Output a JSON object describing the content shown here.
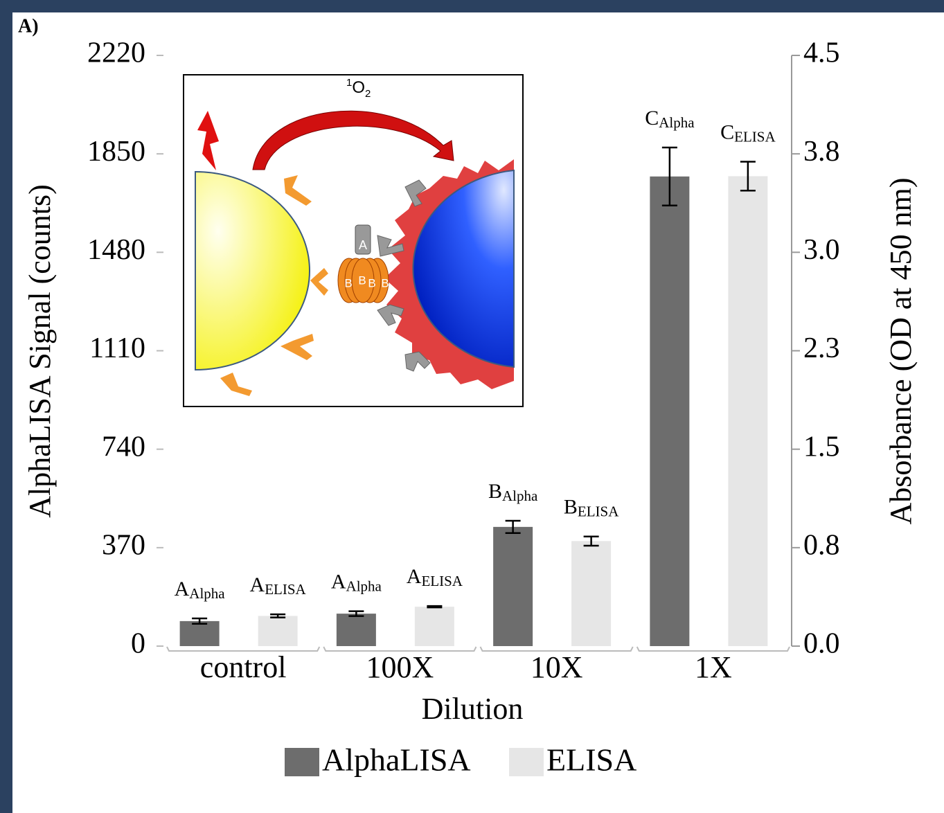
{
  "chart_data": {
    "type": "bar",
    "panel_label": "A)",
    "x_label": "Dilution",
    "y_label": "AlphaLISA Signal (counts)",
    "y2_label": "Absorbance (OD at 450 nm)",
    "categories": [
      "control",
      "100X",
      "10X",
      "1X"
    ],
    "ylim": [
      0,
      2220
    ],
    "yticks": [
      0,
      370,
      740,
      1110,
      1480,
      1850,
      2220
    ],
    "y2lim": [
      0,
      4.5
    ],
    "y2ticks": [
      {
        "value": 0,
        "label": "0.0"
      },
      {
        "value": 0.75,
        "label": "0.8"
      },
      1.5,
      {
        "value": 2.25,
        "label": "2.3"
      },
      {
        "value": 3,
        "label": "3.0"
      },
      {
        "value": 3.75,
        "label": "3.8"
      },
      4.5
    ],
    "series": [
      {
        "name": "AlphaLISA",
        "color": "#6d6d6d",
        "axis": "y",
        "values": [
          94,
          122,
          448,
          1765
        ],
        "errors": [
          10,
          9,
          23,
          109
        ],
        "annotations": [
          {
            "letter": "A",
            "subscript": "Alpha"
          },
          {
            "letter": "A",
            "subscript": "Alpha"
          },
          {
            "letter": "B",
            "subscript": "Alpha"
          },
          {
            "letter": "C",
            "subscript": "Alpha"
          }
        ]
      },
      {
        "name": "ELISA",
        "color": "#e6e6e6",
        "axis": "y2",
        "values": [
          0.23,
          0.3,
          0.8,
          3.58
        ],
        "errors": [
          0.012,
          0.005,
          0.035,
          0.11
        ],
        "annotations": [
          {
            "letter": "A",
            "subscript": "ELISA"
          },
          {
            "letter": "A",
            "subscript": "ELISA"
          },
          {
            "letter": "B",
            "subscript": "ELISA"
          },
          {
            "letter": "C",
            "subscript": "ELISA"
          }
        ]
      }
    ],
    "inset": {
      "oxygen": {
        "sup": "1",
        "main": "O",
        "sub": "2"
      },
      "antibody_a": "A",
      "antibody_b": [
        "B",
        "B",
        "B",
        "B"
      ]
    }
  }
}
